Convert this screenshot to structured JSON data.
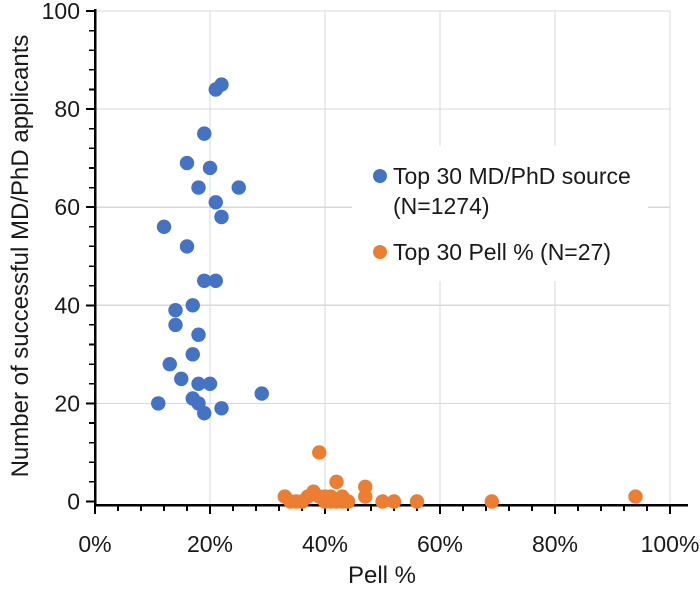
{
  "chart_data": {
    "type": "scatter",
    "title": "",
    "xlabel": "Pell %",
    "ylabel": "Number of successful MD/PhD applicants",
    "xlim": [
      0,
      100
    ],
    "ylim": [
      0,
      100
    ],
    "x_ticks": [
      0,
      20,
      40,
      60,
      80,
      100
    ],
    "x_tick_labels": [
      "0%",
      "20%",
      "40%",
      "60%",
      "80%",
      "100%"
    ],
    "y_ticks": [
      0,
      20,
      40,
      60,
      80,
      100
    ],
    "y_tick_labels": [
      "0",
      "20",
      "40",
      "60",
      "80",
      "100"
    ],
    "minor_tick_step_x": 4,
    "minor_tick_step_y": 4,
    "grid": true,
    "gridline_color": "#d9d9d9",
    "axis_color": "#000000",
    "legend_position": "inside-center-right",
    "series": [
      {
        "name": "Top 30 MD/PhD source (N=1274)",
        "color": "#4472C4",
        "marker": "circle",
        "points": [
          [
            11,
            20
          ],
          [
            12,
            56
          ],
          [
            13,
            28
          ],
          [
            14,
            36
          ],
          [
            14,
            39
          ],
          [
            15,
            25
          ],
          [
            16,
            52
          ],
          [
            16,
            69
          ],
          [
            17,
            21
          ],
          [
            17,
            30
          ],
          [
            17,
            40
          ],
          [
            18,
            20
          ],
          [
            18,
            24
          ],
          [
            18,
            34
          ],
          [
            18,
            64
          ],
          [
            19,
            18
          ],
          [
            19,
            45
          ],
          [
            19,
            75
          ],
          [
            20,
            24
          ],
          [
            20,
            68
          ],
          [
            21,
            45
          ],
          [
            21,
            61
          ],
          [
            21,
            84
          ],
          [
            22,
            19
          ],
          [
            22,
            58
          ],
          [
            22,
            85
          ],
          [
            25,
            64
          ],
          [
            29,
            22
          ]
        ]
      },
      {
        "name": "Top 30 Pell % (N=27)",
        "color": "#ED7D31",
        "marker": "circle",
        "points": [
          [
            33,
            1
          ],
          [
            34,
            0
          ],
          [
            35,
            0
          ],
          [
            36,
            0
          ],
          [
            37,
            1
          ],
          [
            38,
            2
          ],
          [
            39,
            1
          ],
          [
            39,
            10
          ],
          [
            40,
            0
          ],
          [
            40,
            1
          ],
          [
            41,
            0
          ],
          [
            41,
            1
          ],
          [
            42,
            0
          ],
          [
            42,
            4
          ],
          [
            43,
            0
          ],
          [
            43,
            1
          ],
          [
            44,
            0
          ],
          [
            47,
            1
          ],
          [
            47,
            3
          ],
          [
            50,
            0
          ],
          [
            52,
            0
          ],
          [
            56,
            0
          ],
          [
            69,
            0
          ],
          [
            94,
            1
          ]
        ]
      }
    ]
  }
}
